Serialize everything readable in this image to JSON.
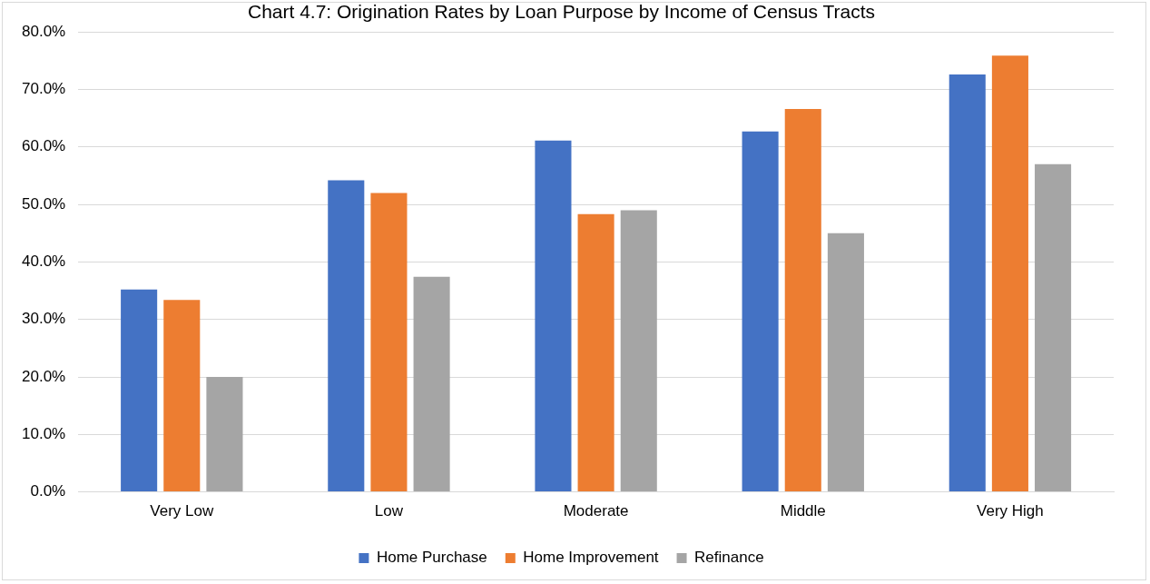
{
  "chart_data": {
    "type": "bar",
    "title": "Chart 4.7: Origination Rates by Loan Purpose by Income of Census Tracts",
    "categories": [
      "Very Low",
      "Low",
      "Moderate",
      "Middle",
      "Very High"
    ],
    "series": [
      {
        "name": "Home Purchase",
        "color": "#4472c4",
        "values": [
          35.2,
          54.2,
          61.1,
          62.7,
          72.6
        ]
      },
      {
        "name": "Home Improvement",
        "color": "#ed7d31",
        "values": [
          33.4,
          52.0,
          48.3,
          66.6,
          75.9
        ]
      },
      {
        "name": "Refinance",
        "color": "#a5a5a5",
        "values": [
          20.0,
          37.4,
          49.0,
          45.0,
          57.0
        ]
      }
    ],
    "ylim": [
      0,
      80
    ],
    "yticks": [
      {
        "value": 0,
        "label": "0.0%"
      },
      {
        "value": 10,
        "label": "10.0%"
      },
      {
        "value": 20,
        "label": "20.0%"
      },
      {
        "value": 30,
        "label": "30.0%"
      },
      {
        "value": 40,
        "label": "40.0%"
      },
      {
        "value": 50,
        "label": "50.0%"
      },
      {
        "value": 60,
        "label": "60.0%"
      },
      {
        "value": 70,
        "label": "70.0%"
      },
      {
        "value": 80,
        "label": "80.0%"
      }
    ],
    "grid": "y",
    "legend": "bottom"
  }
}
